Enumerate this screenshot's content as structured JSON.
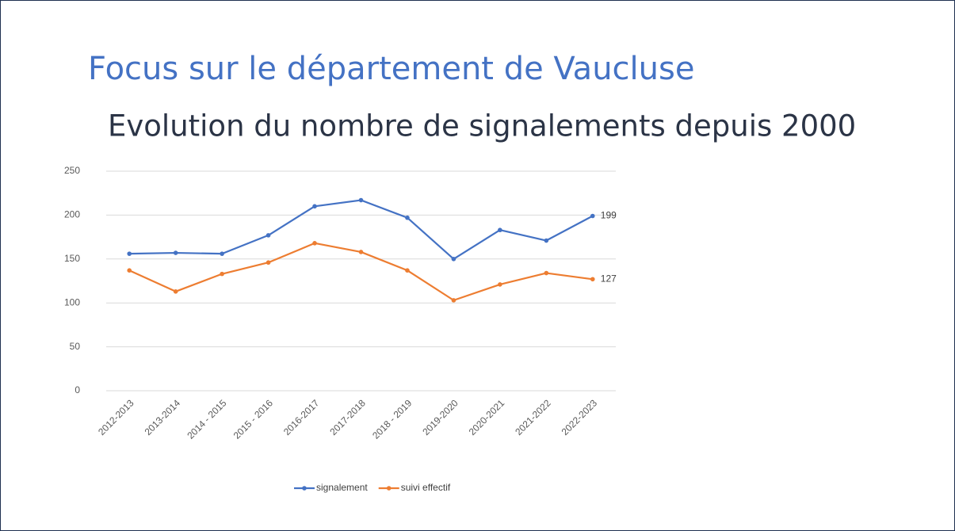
{
  "chart_data": {
    "type": "line",
    "title": "Focus sur le département de Vaucluse",
    "subtitle": "Evolution du nombre de signalements depuis 2000",
    "categories": [
      "2012-2013",
      "2013-2014",
      "2014 - 2015",
      "2015 - 2016",
      "2016-2017",
      "2017-2018",
      "2018 - 2019",
      "2019-2020",
      "2020-2021",
      "2021-2022",
      "2022-2023"
    ],
    "series": [
      {
        "name": "signalement",
        "color": "#4472c4",
        "values": [
          156,
          157,
          156,
          177,
          210,
          217,
          197,
          150,
          183,
          171,
          199
        ]
      },
      {
        "name": "suivi effectif",
        "color": "#ed7d31",
        "values": [
          137,
          113,
          133,
          146,
          168,
          158,
          137,
          103,
          121,
          134,
          127
        ]
      }
    ],
    "ylim": [
      0,
      250
    ],
    "yticks": [
      0,
      50,
      100,
      150,
      200,
      250
    ],
    "grid": true,
    "legend": "bottom"
  }
}
